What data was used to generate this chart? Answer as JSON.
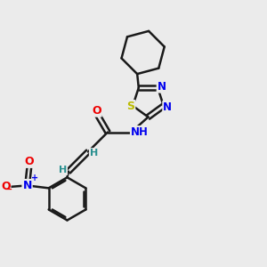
{
  "background_color": "#ebebeb",
  "bond_color": "#1a1a1a",
  "atom_colors": {
    "N": "#0000ee",
    "O": "#ee0000",
    "S": "#bbbb00",
    "H_vinyl": "#2a9090",
    "C": "#1a1a1a",
    "N_plus": "#0000ee",
    "O_minus": "#ee0000",
    "NH": "#0000ee"
  }
}
